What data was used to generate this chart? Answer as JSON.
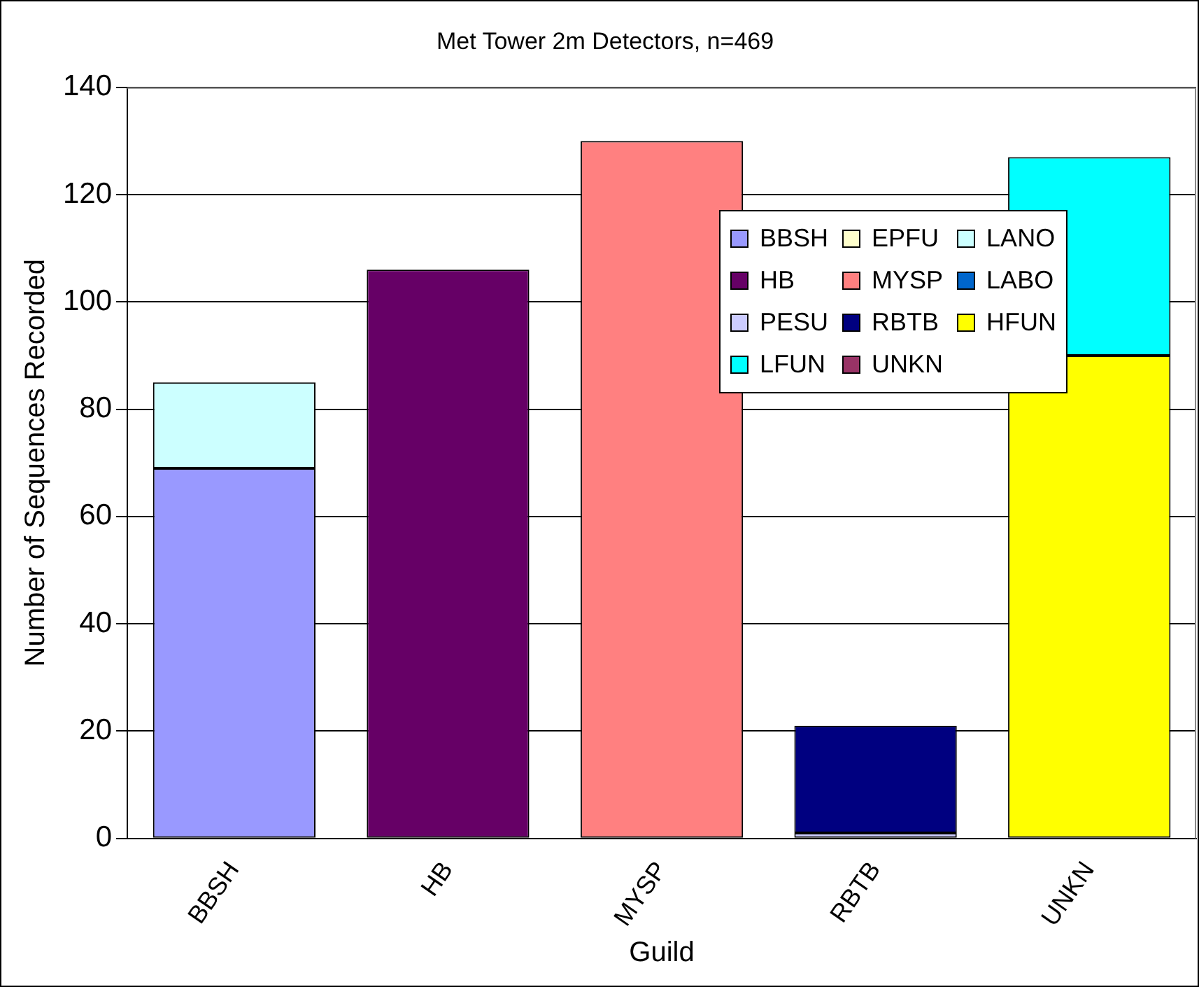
{
  "chart_data": {
    "type": "bar",
    "title": "Met Tower 2m Detectors, n=469",
    "xlabel": "Guild",
    "ylabel": "Number of Sequences Recorded",
    "categories": [
      "BBSH",
      "HB",
      "MYSP",
      "RBTB",
      "UNKN"
    ],
    "stacked": true,
    "series": [
      {
        "name": "BBSH",
        "color": "#9999ff",
        "values": [
          69,
          0,
          0,
          0,
          0
        ]
      },
      {
        "name": "EPFU",
        "color": "#ffffcc",
        "values": [
          0,
          0,
          0,
          0,
          0
        ]
      },
      {
        "name": "LANO",
        "color": "#ccffff",
        "values": [
          16,
          0,
          0,
          0,
          0
        ]
      },
      {
        "name": "HB",
        "color": "#660066",
        "values": [
          0,
          106,
          0,
          0,
          0
        ]
      },
      {
        "name": "MYSP",
        "color": "#ff8080",
        "values": [
          0,
          0,
          130,
          0,
          0
        ]
      },
      {
        "name": "LABO",
        "color": "#0066cc",
        "values": [
          0,
          0,
          0,
          0,
          0
        ]
      },
      {
        "name": "PESU",
        "color": "#ccccff",
        "values": [
          0,
          0,
          0,
          1,
          0
        ]
      },
      {
        "name": "RBTB",
        "color": "#000080",
        "values": [
          0,
          0,
          0,
          20,
          0
        ]
      },
      {
        "name": "HFUN",
        "color": "#ffff00",
        "values": [
          0,
          0,
          0,
          0,
          90
        ]
      },
      {
        "name": "LFUN",
        "color": "#00ffff",
        "values": [
          0,
          0,
          0,
          0,
          37
        ]
      },
      {
        "name": "UNKN",
        "color": "#993366",
        "values": [
          0,
          0,
          0,
          0,
          0
        ]
      }
    ],
    "ylim": [
      0,
      140
    ],
    "yticks": [
      0,
      20,
      40,
      60,
      80,
      100,
      120,
      140
    ],
    "grid": "y",
    "legend": "top right"
  }
}
